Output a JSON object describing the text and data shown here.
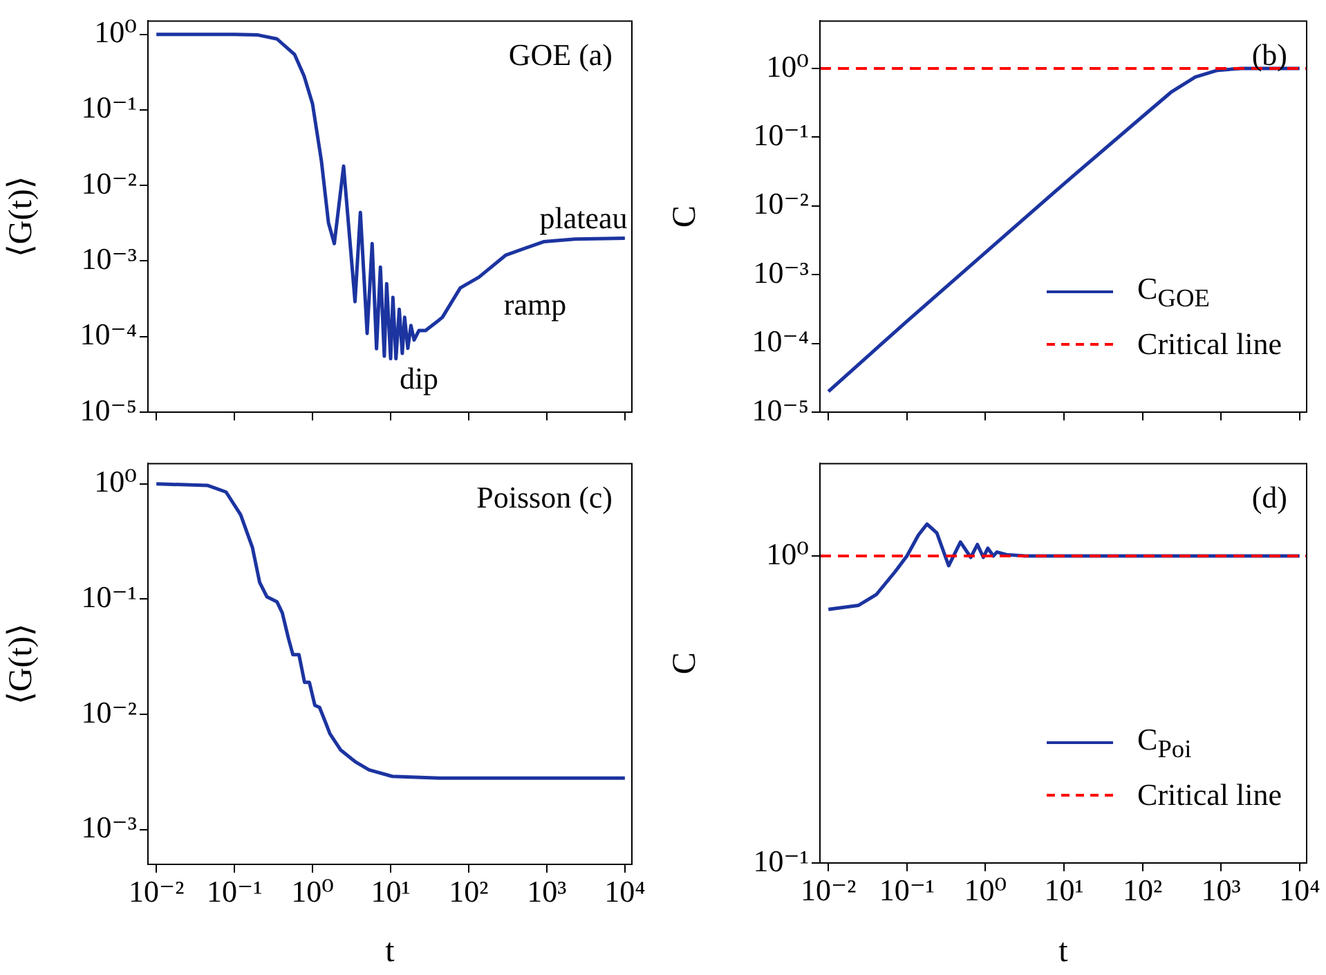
{
  "chart_data": [
    {
      "type": "line",
      "ylabel": "⟨G(t)⟩",
      "log": "xy",
      "tick_labels": "y",
      "xlim": [
        0.0078,
        12300
      ],
      "ylim": [
        1e-05,
        1.5
      ],
      "xticks": [
        {
          "value": 0.01,
          "label": null
        },
        {
          "value": 0.1,
          "label": null
        },
        {
          "value": 1,
          "label": null
        },
        {
          "value": 10,
          "label": null
        },
        {
          "value": 100,
          "label": null
        },
        {
          "value": 1000,
          "label": null
        },
        {
          "value": 10000,
          "label": null
        }
      ],
      "yticks": [
        {
          "value": 1e-05,
          "label": "10⁻⁵"
        },
        {
          "value": 0.0001,
          "label": "10⁻⁴"
        },
        {
          "value": 0.001,
          "label": "10⁻³"
        },
        {
          "value": 0.01,
          "label": "10⁻²"
        },
        {
          "value": 0.1,
          "label": "10⁻¹"
        },
        {
          "value": 1,
          "label": "10⁰"
        }
      ],
      "series": [
        {
          "color": "#1c34a0",
          "x": [
            0.01,
            0.1,
            0.2,
            0.35,
            0.59,
            0.78,
            1.0,
            1.3,
            1.6,
            1.9,
            2.5,
            3.5,
            4.1,
            5.0,
            5.8,
            6.6,
            7.4,
            8.3,
            8.9,
            10,
            10.7,
            11.7,
            12.9,
            14.1,
            15.1,
            16.6,
            18.2,
            20,
            23,
            28,
            40,
            46,
            78,
            135,
            300,
            910,
            2300,
            10000
          ],
          "values": [
            1,
            1,
            0.98,
            0.87,
            0.54,
            0.28,
            0.12,
            0.021,
            0.0032,
            0.0017,
            0.018,
            0.00029,
            0.0044,
            0.00011,
            0.0017,
            6.9e-05,
            0.00083,
            5.5e-05,
            0.0005,
            5.1e-05,
            0.00033,
            5.1e-05,
            0.00023,
            6e-05,
            0.00018,
            7e-05,
            0.00014,
            9e-05,
            0.00012,
            0.00012,
            0.00016,
            0.00018,
            0.00044,
            0.00061,
            0.0012,
            0.0018,
            0.00195,
            0.002
          ]
        }
      ],
      "annotations": [
        "GOE (a)",
        "plateau",
        "ramp",
        "dip"
      ]
    },
    {
      "type": "line",
      "ylabel": "C",
      "log": "xy",
      "tick_labels": "y",
      "legend": "bottom right",
      "xlim": [
        0.0078,
        12300
      ],
      "ylim": [
        1e-05,
        4.9
      ],
      "xticks": [
        {
          "value": 0.01,
          "label": null
        },
        {
          "value": 0.1,
          "label": null
        },
        {
          "value": 1,
          "label": null
        },
        {
          "value": 10,
          "label": null
        },
        {
          "value": 100,
          "label": null
        },
        {
          "value": 1000,
          "label": null
        },
        {
          "value": 10000,
          "label": null
        }
      ],
      "yticks": [
        {
          "value": 1e-05,
          "label": "10⁻⁵"
        },
        {
          "value": 0.0001,
          "label": "10⁻⁴"
        },
        {
          "value": 0.001,
          "label": "10⁻³"
        },
        {
          "value": 0.01,
          "label": "10⁻²"
        },
        {
          "value": 0.1,
          "label": "10⁻¹"
        },
        {
          "value": 1,
          "label": "10⁰"
        }
      ],
      "series": [
        {
          "name": "C$_{GOE}$",
          "color": "#1c34a0",
          "x": [
            0.01,
            0.1,
            1,
            10,
            100,
            230,
            470,
            900,
            1800,
            10000
          ],
          "values": [
            2e-05,
            0.00021,
            0.0021,
            0.021,
            0.2,
            0.45,
            0.75,
            0.94,
            1.0,
            1.0
          ]
        }
      ],
      "ref_lines": [
        {
          "axis": "y",
          "value": 1,
          "label": "Critical line",
          "color": "#ff0000",
          "line_style": "dashed"
        }
      ],
      "annotations": [
        "(b)"
      ]
    },
    {
      "type": "line",
      "ylabel": "⟨G(t)⟩",
      "xlabel": "t",
      "log": "xy",
      "xlim": [
        0.0078,
        12300
      ],
      "ylim": [
        0.0005,
        1.5
      ],
      "xticks": [
        {
          "value": 0.01,
          "label": "10⁻²"
        },
        {
          "value": 0.1,
          "label": "10⁻¹"
        },
        {
          "value": 1,
          "label": "10⁰"
        },
        {
          "value": 10,
          "label": "10¹"
        },
        {
          "value": 100,
          "label": "10²"
        },
        {
          "value": 1000,
          "label": "10³"
        },
        {
          "value": 10000,
          "label": "10⁴"
        }
      ],
      "yticks": [
        {
          "value": 0.001,
          "label": "10⁻³"
        },
        {
          "value": 0.01,
          "label": "10⁻²"
        },
        {
          "value": 0.1,
          "label": "10⁻¹"
        },
        {
          "value": 1,
          "label": "10⁰"
        }
      ],
      "series": [
        {
          "color": "#1c34a0",
          "x": [
            0.01,
            0.045,
            0.078,
            0.12,
            0.17,
            0.21,
            0.26,
            0.35,
            0.41,
            0.49,
            0.56,
            0.67,
            0.79,
            0.91,
            1.07,
            1.23,
            1.45,
            1.67,
            2.3,
            3.5,
            5.3,
            10.5,
            42,
            10000
          ],
          "values": [
            1,
            0.97,
            0.85,
            0.54,
            0.28,
            0.14,
            0.105,
            0.095,
            0.076,
            0.046,
            0.033,
            0.033,
            0.019,
            0.019,
            0.012,
            0.0115,
            0.0087,
            0.0068,
            0.0049,
            0.0039,
            0.0033,
            0.0029,
            0.0028,
            0.0028
          ]
        }
      ],
      "annotations": [
        "Poisson (c)"
      ]
    },
    {
      "type": "line",
      "ylabel": "C",
      "xlabel": "t",
      "log": "xy",
      "legend": "bottom right",
      "xlim": [
        0.0078,
        12300
      ],
      "ylim": [
        0.1,
        2.0
      ],
      "xticks": [
        {
          "value": 0.01,
          "label": "10⁻²"
        },
        {
          "value": 0.1,
          "label": "10⁻¹"
        },
        {
          "value": 1,
          "label": "10⁰"
        },
        {
          "value": 10,
          "label": "10¹"
        },
        {
          "value": 100,
          "label": "10²"
        },
        {
          "value": 1000,
          "label": "10³"
        },
        {
          "value": 10000,
          "label": "10⁴"
        }
      ],
      "yticks": [
        {
          "value": 0.1,
          "label": "10⁻¹"
        },
        {
          "value": 1,
          "label": "10⁰"
        }
      ],
      "series": [
        {
          "name": "C$_{Poi}$",
          "color": "#1c34a0",
          "x": [
            0.01,
            0.024,
            0.041,
            0.071,
            0.1,
            0.14,
            0.18,
            0.24,
            0.34,
            0.48,
            0.65,
            0.79,
            0.94,
            1.07,
            1.26,
            1.4,
            1.86,
            3.2,
            10000
          ],
          "values": [
            0.67,
            0.69,
            0.75,
            0.89,
            1.0,
            1.17,
            1.27,
            1.19,
            0.93,
            1.11,
            0.99,
            1.09,
            0.99,
            1.06,
            1.0,
            1.03,
            1.01,
            1.0,
            1.0
          ]
        }
      ],
      "ref_lines": [
        {
          "axis": "y",
          "value": 1,
          "label": "Critical line",
          "color": "#ff0000",
          "line_style": "dashed"
        }
      ],
      "annotations": [
        "(d)"
      ]
    }
  ]
}
